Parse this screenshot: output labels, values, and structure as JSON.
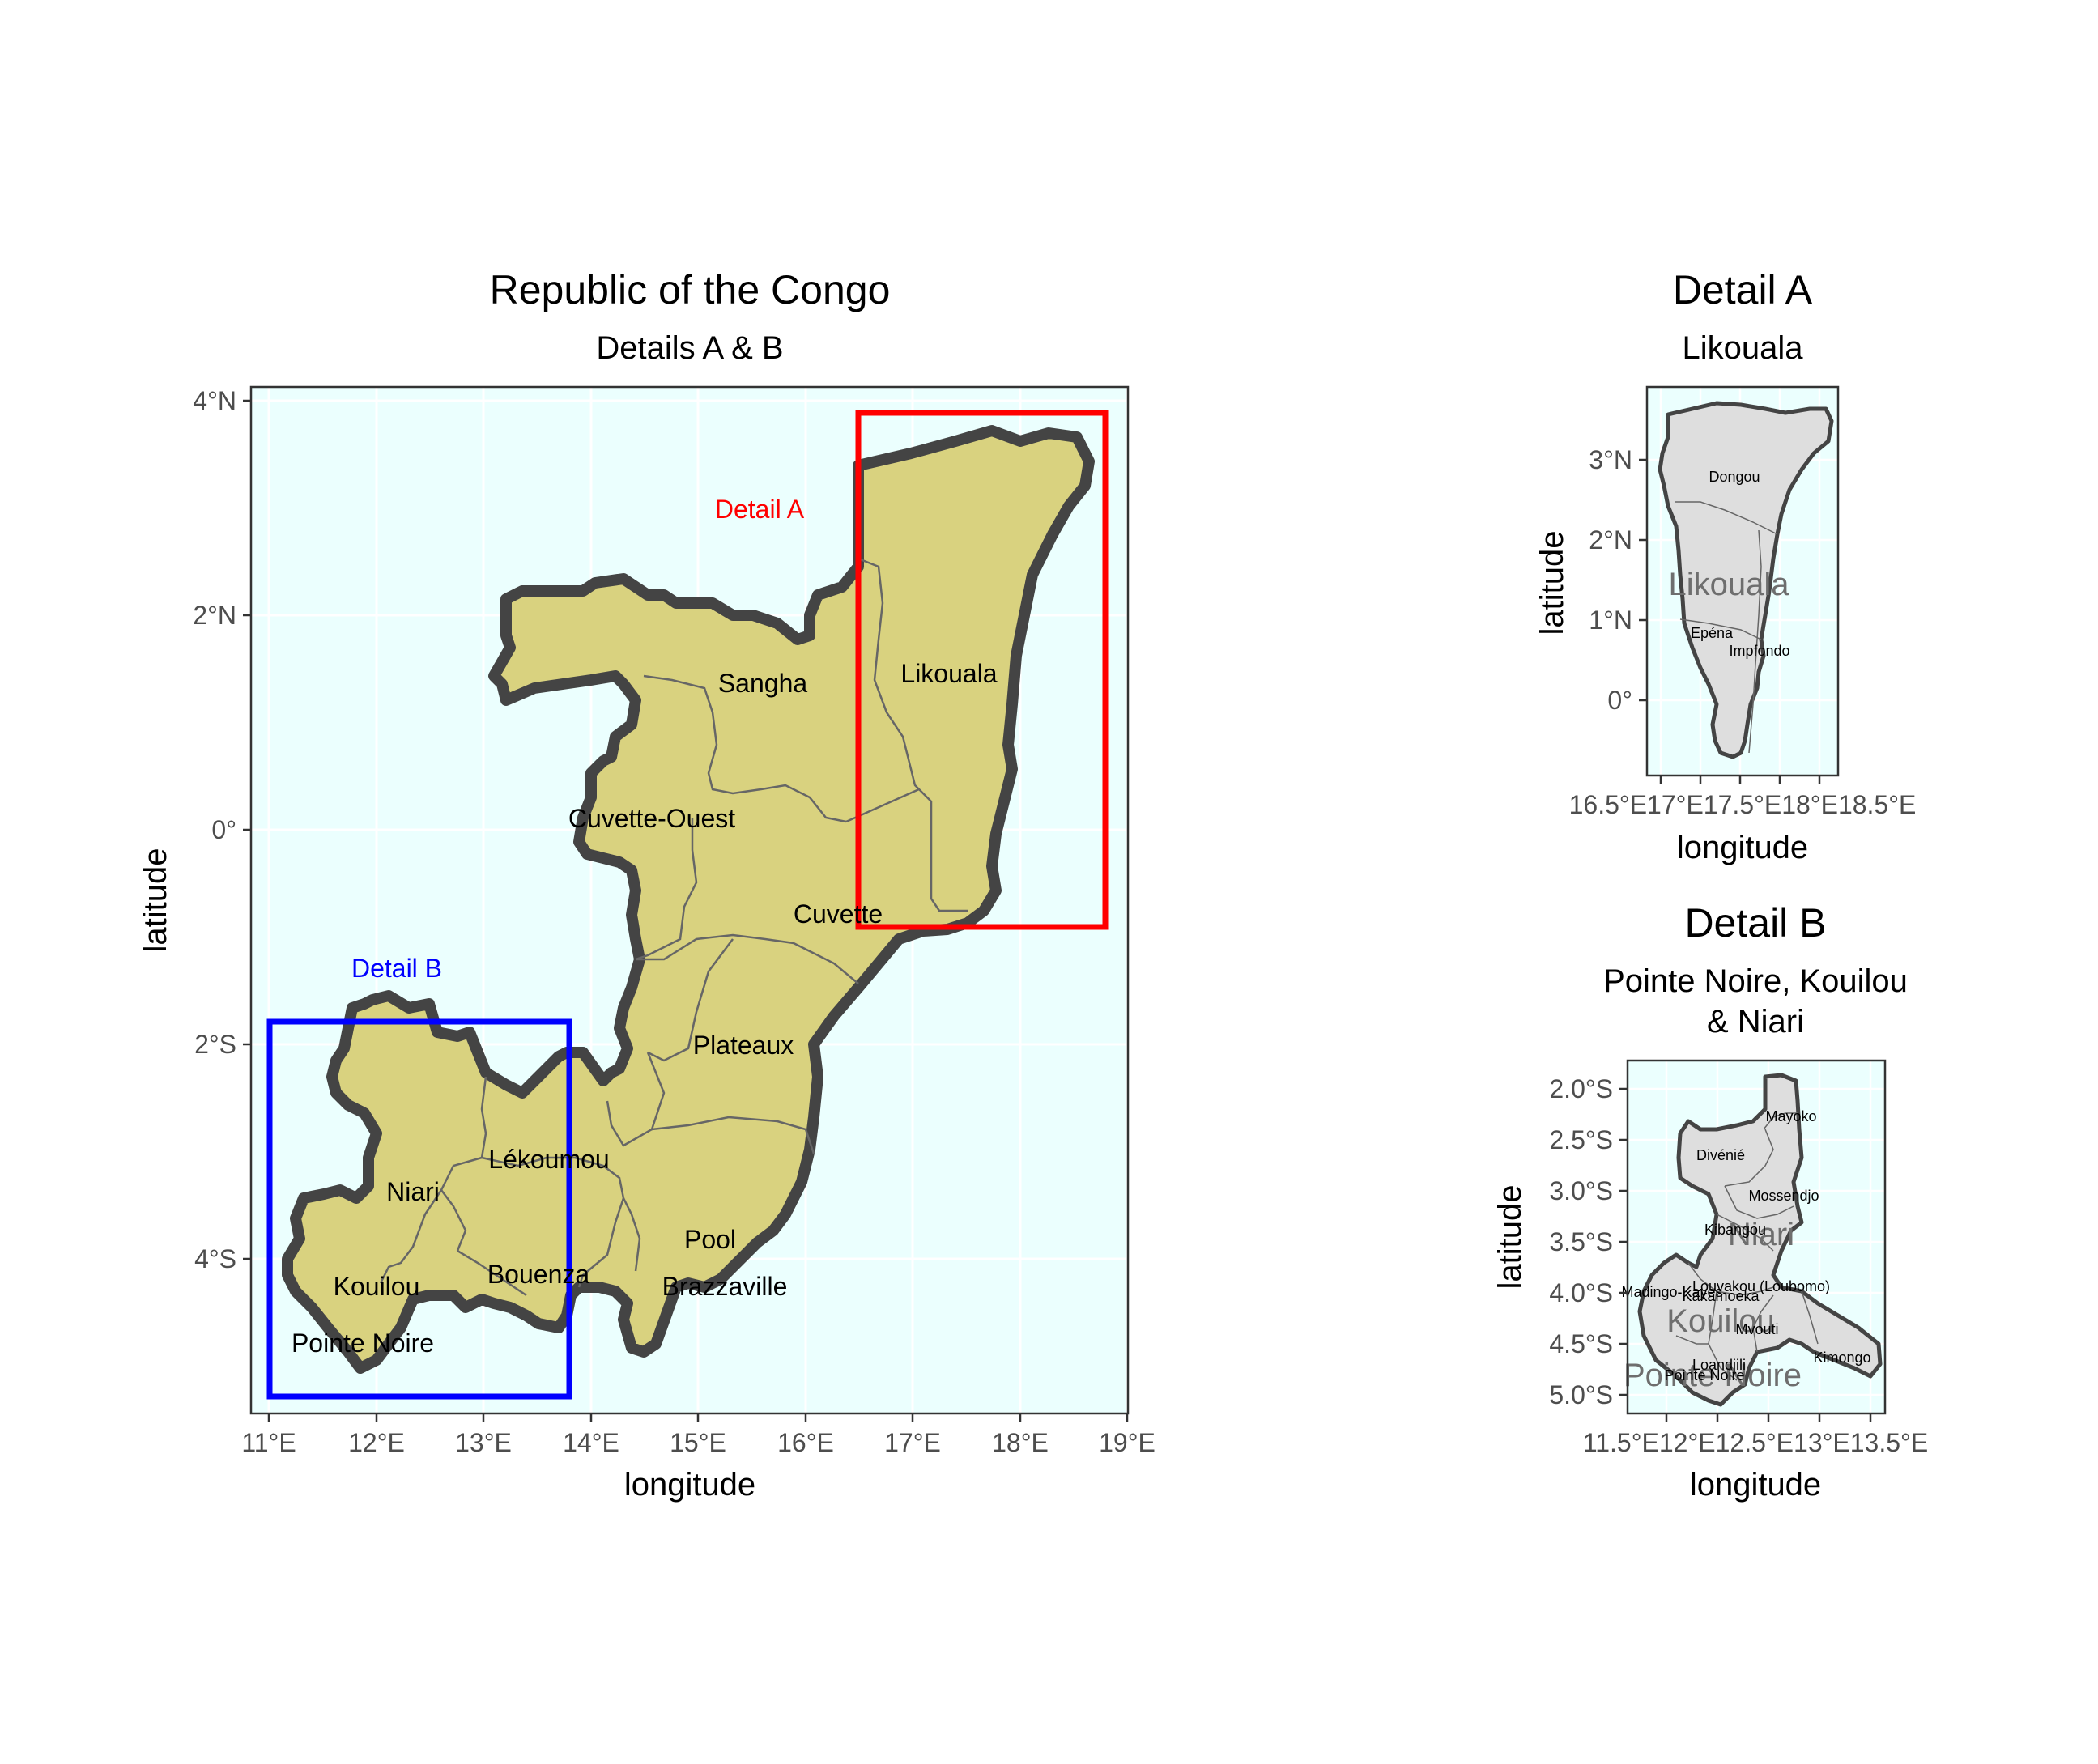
{
  "main": {
    "title": "Republic of the Congo",
    "subtitle": "Details A & B",
    "xlabel": "longitude",
    "ylabel": "latitude",
    "xticks": [
      "11°E",
      "12°E",
      "13°E",
      "14°E",
      "15°E",
      "16°E",
      "17°E",
      "18°E",
      "19°E"
    ],
    "yticks": [
      "4°N",
      "2°N",
      "0°",
      "2°S",
      "4°S"
    ],
    "regions": [
      "Sangha",
      "Likouala",
      "Cuvette-Ouest",
      "Cuvette",
      "Plateaux",
      "Lékoumou",
      "Niari",
      "Bouenza",
      "Pool",
      "Kouilou",
      "Brazzaville",
      "Pointe Noire"
    ],
    "box_a_label": "Detail A",
    "box_b_label": "Detail B",
    "box_a_color": "#ff0000",
    "box_b_color": "#0000ff",
    "fill_color": "#d9d27f",
    "background_color": "#ebfffe"
  },
  "detail_a": {
    "title": "Detail A",
    "subtitle": "Likouala",
    "xlabel": "longitude",
    "ylabel": "latitude",
    "xticks": [
      "16.5°E",
      "17°E",
      "17.5°E",
      "18°E",
      "18.5°E"
    ],
    "xticks_line": "16.5°E17°E17.5°E18°E18.5°E",
    "yticks": [
      "3°N",
      "2°N",
      "1°N",
      "0°"
    ],
    "ghost_label": "Likouala",
    "districts": [
      "Dongou",
      "Epéna",
      "Impfondo"
    ],
    "fill_color": "#dedede"
  },
  "detail_b": {
    "title": "Detail B",
    "subtitle_line1": "Pointe Noire, Kouilou",
    "subtitle_line2": "& Niari",
    "xlabel": "longitude",
    "ylabel": "latitude",
    "xticks_line": "11.5°E12°E12.5°E13°E13.5°E",
    "yticks": [
      "2.0°S",
      "2.5°S",
      "3.0°S",
      "3.5°S",
      "4.0°S",
      "4.5°S",
      "5.0°S"
    ],
    "ghost_labels": [
      "Niari",
      "Kouilou",
      "Pointe Noire"
    ],
    "districts": [
      "Mayoko",
      "Divénié",
      "Mossendjo",
      "Kibangou",
      "Louvakou (Loubomo)",
      "Kakamoeka",
      "Madingo-Kayes",
      "Mvouti",
      "Kimongo",
      "Loandjili",
      "Pointe Noire"
    ],
    "fill_color": "#dedede"
  }
}
